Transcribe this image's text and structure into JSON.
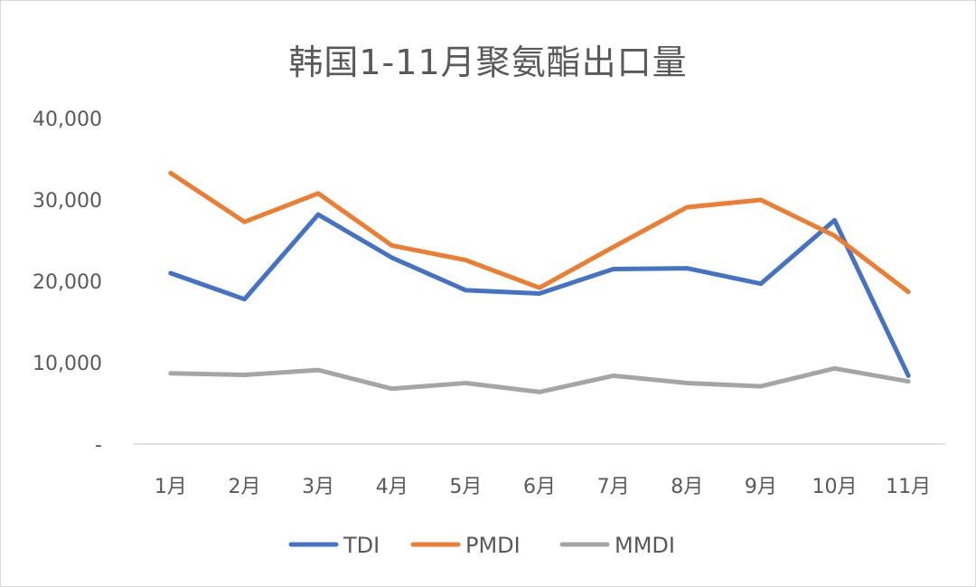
{
  "chart_data": {
    "type": "line",
    "title": "韩国1-11月聚氨酯出口量",
    "xlabel": "",
    "ylabel": "",
    "ylim": [
      0,
      40000
    ],
    "y_ticks": [
      {
        "value": 0,
        "label": "-"
      },
      {
        "value": 10000,
        "label": "10,000"
      },
      {
        "value": 20000,
        "label": "20,000"
      },
      {
        "value": 30000,
        "label": "30,000"
      },
      {
        "value": 40000,
        "label": "40,000"
      }
    ],
    "grid": false,
    "legend_position": "bottom",
    "categories": [
      "1月",
      "2月",
      "3月",
      "4月",
      "5月",
      "6月",
      "7月",
      "8月",
      "9月",
      "10月",
      "11月"
    ],
    "series": [
      {
        "name": "TDI",
        "color": "#4472c4",
        "values": [
          21000,
          17800,
          28200,
          22900,
          18900,
          18500,
          21500,
          21600,
          19700,
          27500,
          8400
        ]
      },
      {
        "name": "PMDI",
        "color": "#ed7d31",
        "values": [
          33300,
          27300,
          30800,
          24400,
          22600,
          19200,
          24200,
          29100,
          30000,
          25600,
          18700
        ]
      },
      {
        "name": "MMDI",
        "color": "#a5a5a5",
        "values": [
          8700,
          8500,
          9100,
          6800,
          7500,
          6400,
          8400,
          7500,
          7100,
          9300,
          7700
        ]
      }
    ]
  }
}
